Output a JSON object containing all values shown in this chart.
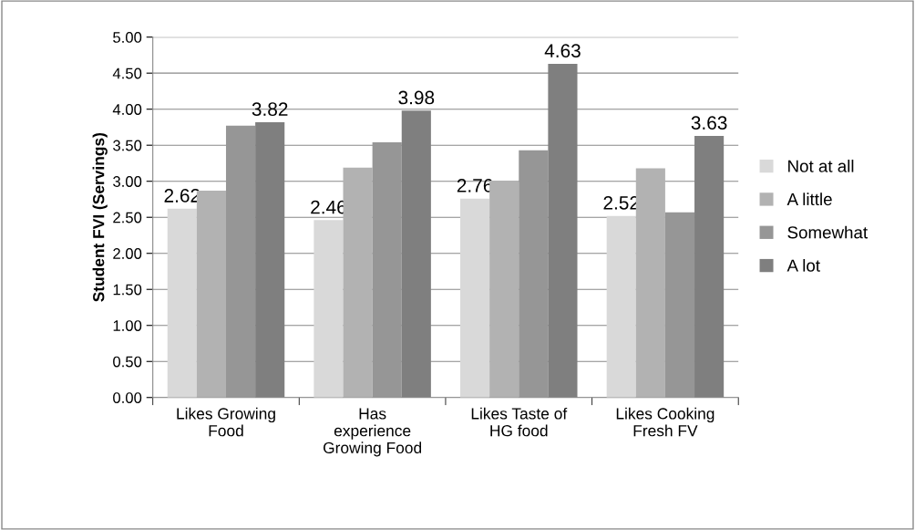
{
  "chart_data": {
    "type": "bar",
    "ylabel": "Student FVI (Servings)",
    "categories": [
      "Likes Growing\nFood",
      "Has\nexperience\nGrowing Food",
      "Likes Taste of\nHG food",
      "Likes Cooking\nFresh FV"
    ],
    "series": [
      {
        "name": "Not at all",
        "color": "#d9d9d9",
        "values": [
          2.62,
          2.46,
          2.76,
          2.52
        ],
        "value_labels": [
          "2.62",
          "2.46",
          "2.76",
          "2.52"
        ]
      },
      {
        "name": "A little",
        "color": "#b2b2b2",
        "values": [
          2.87,
          3.19,
          3.01,
          3.18
        ]
      },
      {
        "name": "Somewhat",
        "color": "#969696",
        "values": [
          3.77,
          3.54,
          3.43,
          2.57
        ]
      },
      {
        "name": "A lot",
        "color": "#7f7f7f",
        "values": [
          3.82,
          3.98,
          4.63,
          3.63
        ],
        "value_labels": [
          "3.82",
          "3.98",
          "4.63",
          "3.63"
        ]
      }
    ],
    "ylim": [
      0,
      5
    ],
    "yticks": [
      {
        "value": 0,
        "label": "0.00"
      },
      {
        "value": 0.5,
        "label": "0.50"
      },
      {
        "value": 1,
        "label": "1.00"
      },
      {
        "value": 1.5,
        "label": "1.50"
      },
      {
        "value": 2,
        "label": "2.00"
      },
      {
        "value": 2.5,
        "label": "2.50"
      },
      {
        "value": 3,
        "label": "3.00"
      },
      {
        "value": 3.5,
        "label": "3.50"
      },
      {
        "value": 4,
        "label": "4.00"
      },
      {
        "value": 4.5,
        "label": "4.50"
      },
      {
        "value": 5,
        "label": "5.00"
      }
    ],
    "grid": "y",
    "legend": "right"
  }
}
